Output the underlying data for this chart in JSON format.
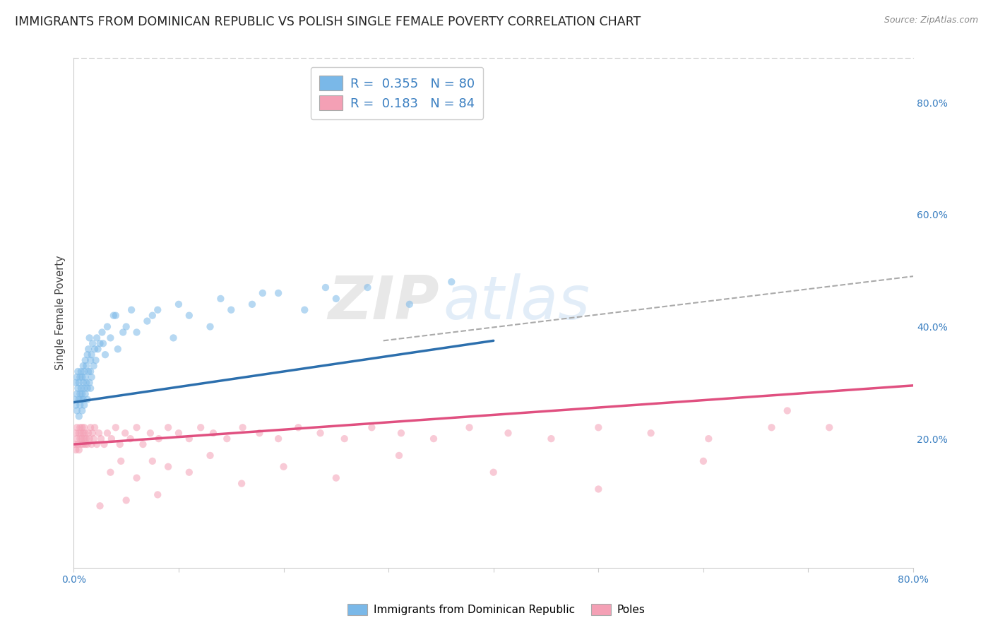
{
  "title": "IMMIGRANTS FROM DOMINICAN REPUBLIC VS POLISH SINGLE FEMALE POVERTY CORRELATION CHART",
  "source": "Source: ZipAtlas.com",
  "ylabel": "Single Female Poverty",
  "xlim": [
    0.0,
    0.8
  ],
  "ylim": [
    -0.03,
    0.88
  ],
  "xticks": [
    0.0,
    0.1,
    0.2,
    0.3,
    0.4,
    0.5,
    0.6,
    0.7,
    0.8
  ],
  "xticklabels": [
    "0.0%",
    "",
    "",
    "",
    "",
    "",
    "",
    "",
    "80.0%"
  ],
  "ytick_positions": [
    0.2,
    0.4,
    0.6,
    0.8
  ],
  "ytick_labels": [
    "20.0%",
    "40.0%",
    "60.0%",
    "80.0%"
  ],
  "blue_color": "#7ab8e8",
  "pink_color": "#f4a0b5",
  "blue_line_color": "#2c6fad",
  "pink_line_color": "#e05080",
  "dashed_line_color": "#aaaaaa",
  "watermark_zip": "ZIP",
  "watermark_atlas": "atlas",
  "legend_label1": "R =  0.355   N = 80",
  "legend_label2": "R =  0.183   N = 84",
  "legend_bottom1": "Immigrants from Dominican Republic",
  "legend_bottom2": "Poles",
  "blue_scatter_x": [
    0.001,
    0.002,
    0.002,
    0.003,
    0.003,
    0.003,
    0.004,
    0.004,
    0.005,
    0.005,
    0.005,
    0.006,
    0.006,
    0.006,
    0.007,
    0.007,
    0.007,
    0.008,
    0.008,
    0.008,
    0.009,
    0.009,
    0.009,
    0.01,
    0.01,
    0.01,
    0.011,
    0.011,
    0.011,
    0.012,
    0.012,
    0.013,
    0.013,
    0.013,
    0.014,
    0.014,
    0.015,
    0.015,
    0.016,
    0.016,
    0.017,
    0.017,
    0.018,
    0.019,
    0.02,
    0.021,
    0.022,
    0.023,
    0.025,
    0.027,
    0.03,
    0.032,
    0.035,
    0.038,
    0.042,
    0.05,
    0.06,
    0.07,
    0.08,
    0.095,
    0.11,
    0.13,
    0.15,
    0.17,
    0.195,
    0.22,
    0.25,
    0.28,
    0.32,
    0.36,
    0.047,
    0.028,
    0.016,
    0.04,
    0.055,
    0.075,
    0.1,
    0.14,
    0.18,
    0.24
  ],
  "blue_scatter_y": [
    0.27,
    0.3,
    0.26,
    0.28,
    0.31,
    0.25,
    0.29,
    0.32,
    0.27,
    0.3,
    0.24,
    0.28,
    0.31,
    0.26,
    0.29,
    0.32,
    0.27,
    0.28,
    0.31,
    0.25,
    0.3,
    0.33,
    0.27,
    0.29,
    0.32,
    0.26,
    0.31,
    0.34,
    0.28,
    0.3,
    0.33,
    0.29,
    0.35,
    0.27,
    0.32,
    0.36,
    0.3,
    0.38,
    0.32,
    0.29,
    0.35,
    0.31,
    0.37,
    0.33,
    0.36,
    0.34,
    0.38,
    0.36,
    0.37,
    0.39,
    0.35,
    0.4,
    0.38,
    0.42,
    0.36,
    0.4,
    0.39,
    0.41,
    0.43,
    0.38,
    0.42,
    0.4,
    0.43,
    0.44,
    0.46,
    0.43,
    0.45,
    0.47,
    0.44,
    0.48,
    0.39,
    0.37,
    0.34,
    0.42,
    0.43,
    0.42,
    0.44,
    0.45,
    0.46,
    0.47
  ],
  "pink_scatter_x": [
    0.001,
    0.002,
    0.002,
    0.003,
    0.003,
    0.004,
    0.005,
    0.005,
    0.006,
    0.006,
    0.007,
    0.007,
    0.008,
    0.008,
    0.009,
    0.009,
    0.01,
    0.01,
    0.011,
    0.011,
    0.012,
    0.013,
    0.014,
    0.015,
    0.016,
    0.017,
    0.018,
    0.019,
    0.02,
    0.022,
    0.024,
    0.026,
    0.029,
    0.032,
    0.036,
    0.04,
    0.044,
    0.049,
    0.054,
    0.06,
    0.066,
    0.073,
    0.081,
    0.09,
    0.1,
    0.11,
    0.121,
    0.133,
    0.146,
    0.161,
    0.177,
    0.195,
    0.214,
    0.235,
    0.258,
    0.284,
    0.312,
    0.343,
    0.377,
    0.414,
    0.455,
    0.5,
    0.55,
    0.605,
    0.665,
    0.035,
    0.045,
    0.06,
    0.075,
    0.09,
    0.11,
    0.13,
    0.16,
    0.2,
    0.25,
    0.31,
    0.4,
    0.5,
    0.6,
    0.68,
    0.72,
    0.025,
    0.05,
    0.08
  ],
  "pink_scatter_y": [
    0.19,
    0.21,
    0.18,
    0.2,
    0.22,
    0.19,
    0.21,
    0.18,
    0.2,
    0.22,
    0.19,
    0.21,
    0.2,
    0.22,
    0.19,
    0.21,
    0.2,
    0.22,
    0.19,
    0.21,
    0.2,
    0.19,
    0.21,
    0.2,
    0.22,
    0.19,
    0.21,
    0.2,
    0.22,
    0.19,
    0.21,
    0.2,
    0.19,
    0.21,
    0.2,
    0.22,
    0.19,
    0.21,
    0.2,
    0.22,
    0.19,
    0.21,
    0.2,
    0.22,
    0.21,
    0.2,
    0.22,
    0.21,
    0.2,
    0.22,
    0.21,
    0.2,
    0.22,
    0.21,
    0.2,
    0.22,
    0.21,
    0.2,
    0.22,
    0.21,
    0.2,
    0.22,
    0.21,
    0.2,
    0.22,
    0.14,
    0.16,
    0.13,
    0.16,
    0.15,
    0.14,
    0.17,
    0.12,
    0.15,
    0.13,
    0.17,
    0.14,
    0.11,
    0.16,
    0.25,
    0.22,
    0.08,
    0.09,
    0.1
  ],
  "blue_trend_x": [
    0.0,
    0.4
  ],
  "blue_trend_y": [
    0.265,
    0.375
  ],
  "pink_trend_x": [
    0.0,
    0.8
  ],
  "pink_trend_y": [
    0.19,
    0.295
  ],
  "dashed_trend_x": [
    0.295,
    0.8
  ],
  "dashed_trend_y": [
    0.375,
    0.49
  ],
  "background_color": "#ffffff",
  "grid_color": "#e8e8e8",
  "title_fontsize": 12.5,
  "axis_label_fontsize": 10.5,
  "tick_fontsize": 10,
  "scatter_size": 55,
  "scatter_alpha": 0.55,
  "blue_tick_color": "#3a7fc1",
  "left_label_color": "#444444"
}
